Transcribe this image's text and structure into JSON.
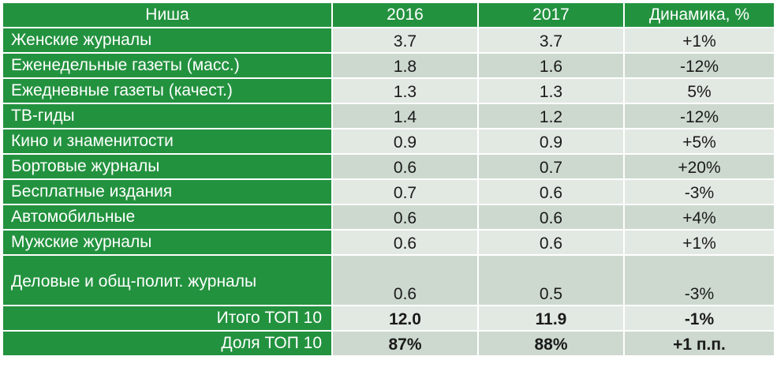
{
  "header": {
    "col_niche": "Ниша",
    "col_2016": "2016",
    "col_2017": "2017",
    "col_dynamics": "Динамика, %"
  },
  "rows": [
    {
      "name": "Женские журналы",
      "v2016": "3.7",
      "v2017": "3.7",
      "dyn": "+1%"
    },
    {
      "name": "Еженедельные газеты (масс.)",
      "v2016": "1.8",
      "v2017": "1.6",
      "dyn": "-12%"
    },
    {
      "name": "Ежедневные газеты (качест.)",
      "v2016": "1.3",
      "v2017": "1.3",
      "dyn": "5%"
    },
    {
      "name": "ТВ-гиды",
      "v2016": "1.4",
      "v2017": "1.2",
      "dyn": "-12%"
    },
    {
      "name": "Кино и знаменитости",
      "v2016": "0.9",
      "v2017": "0.9",
      "dyn": "+5%"
    },
    {
      "name": "Бортовые журналы",
      "v2016": "0.6",
      "v2017": "0.7",
      "dyn": "+20%"
    },
    {
      "name": "Бесплатные издания",
      "v2016": "0.7",
      "v2017": "0.6",
      "dyn": "-3%"
    },
    {
      "name": "Автомобильные",
      "v2016": "0.6",
      "v2017": "0.6",
      "dyn": "+4%"
    },
    {
      "name": "Мужские журналы",
      "v2016": "0.6",
      "v2017": "0.6",
      "dyn": "+1%"
    },
    {
      "name": "Деловые и общ-полит. журналы",
      "v2016": "0.6",
      "v2017": "0.5",
      "dyn": "-3%"
    }
  ],
  "totals": [
    {
      "name": "Итого ТОП 10",
      "v2016": "12.0",
      "v2017": "11.9",
      "dyn": "-1%"
    },
    {
      "name": "Доля ТОП 10",
      "v2016": "87%",
      "v2017": "88%",
      "dyn": "+1 п.п."
    }
  ],
  "colors": {
    "header_green": "#23923f",
    "row_light": "#e2e8e2",
    "row_dark": "#cdd9cf"
  }
}
